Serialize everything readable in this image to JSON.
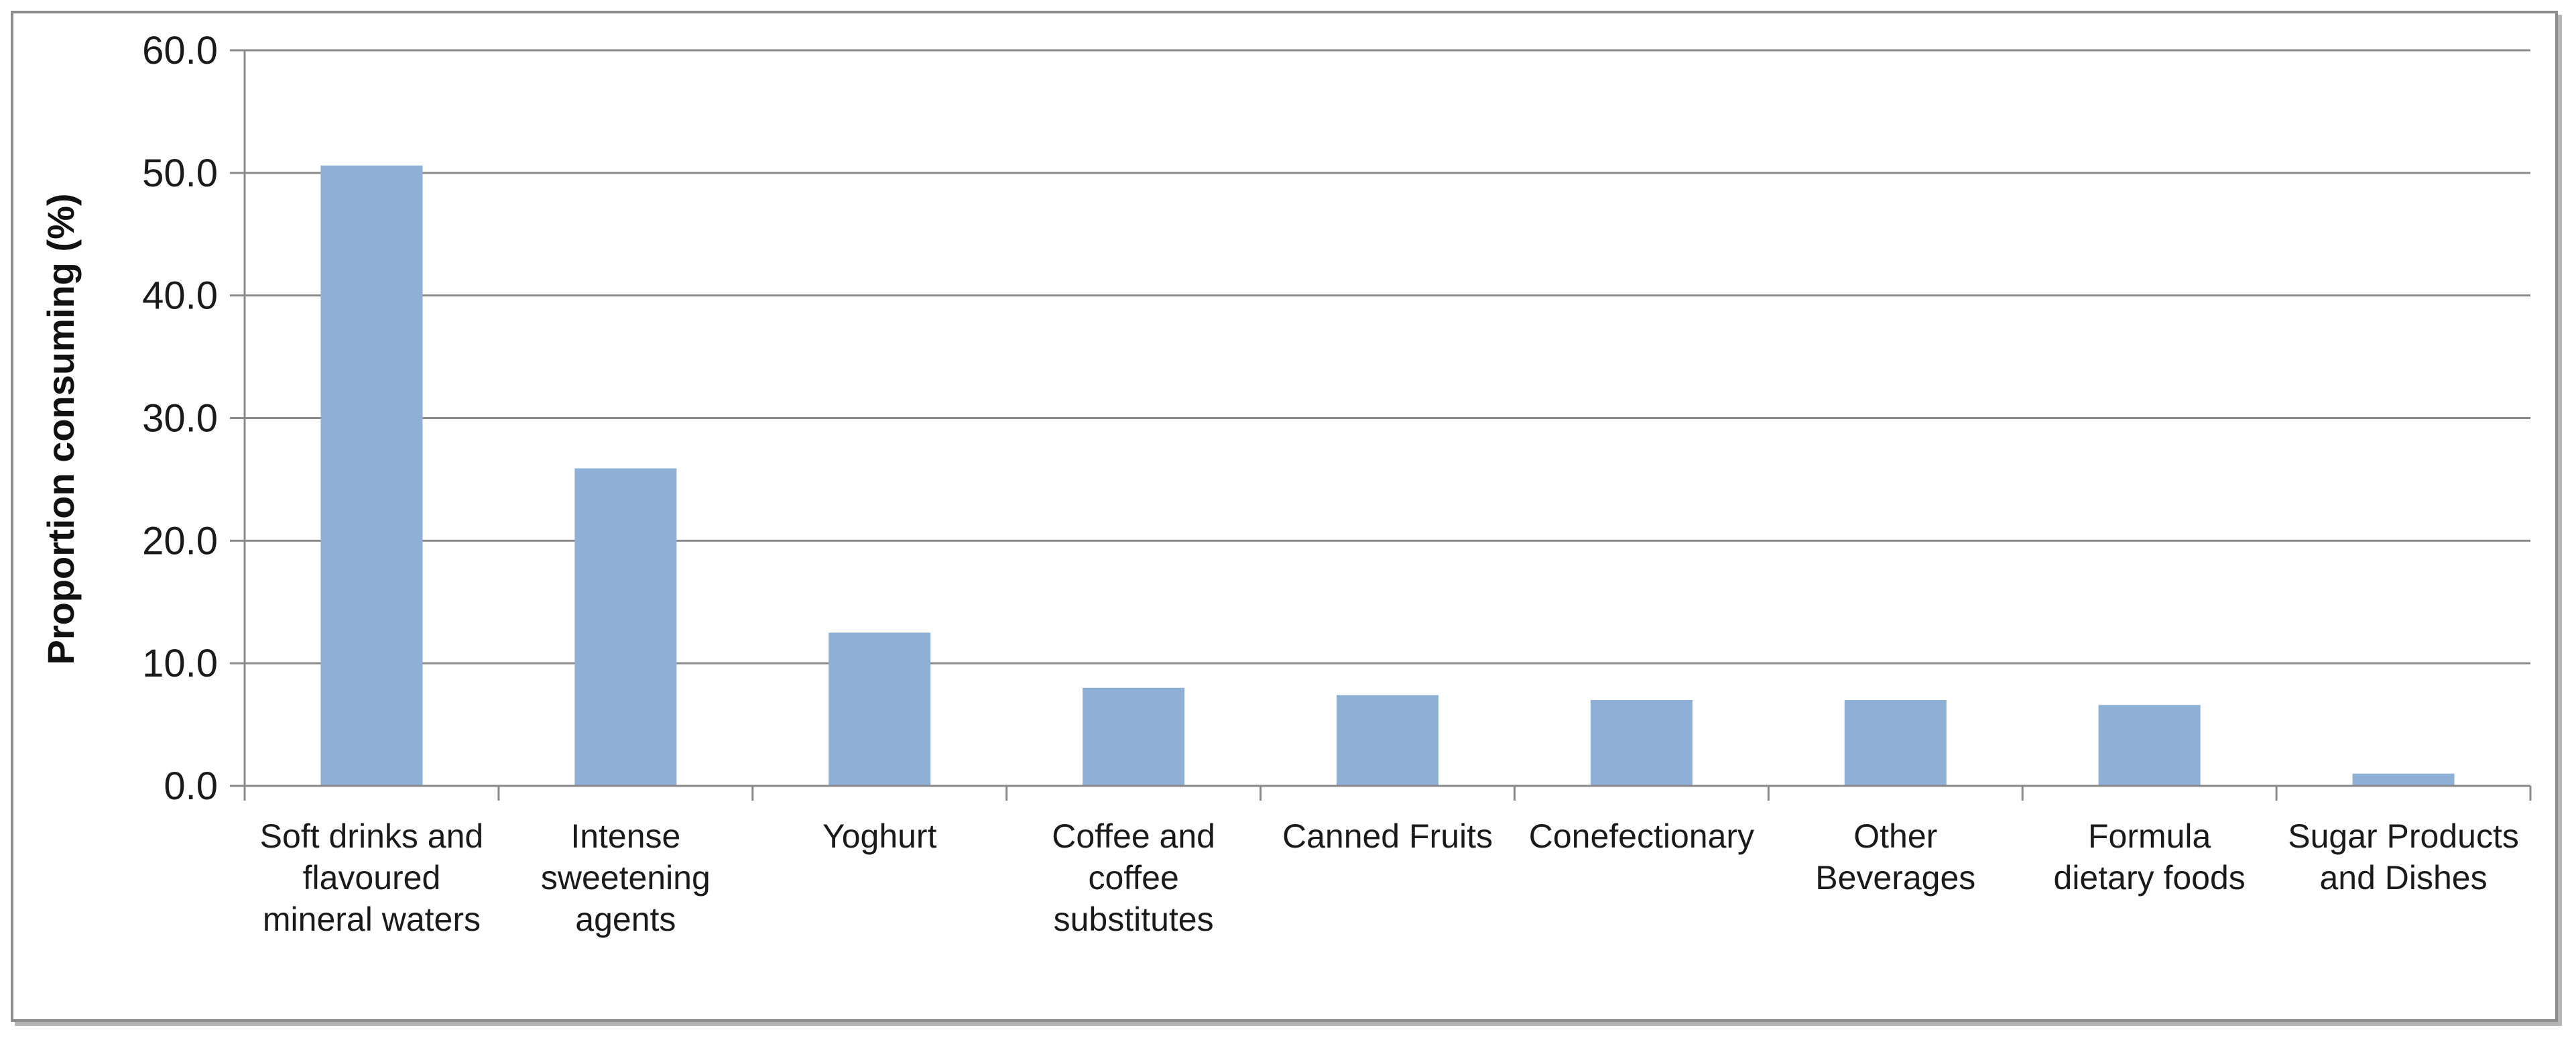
{
  "chart_data": {
    "type": "bar",
    "title": "",
    "xlabel": "",
    "ylabel": "Proportion consuming (%)",
    "ylim": [
      0,
      60
    ],
    "yticks": [
      "0.0",
      "10.0",
      "20.0",
      "30.0",
      "40.0",
      "50.0",
      "60.0"
    ],
    "grid": true,
    "bar_color": "#8eafd6",
    "categories": [
      [
        "Soft drinks and",
        "flavoured",
        "mineral waters"
      ],
      [
        "Intense",
        "sweetening",
        "agents"
      ],
      [
        "Yoghurt"
      ],
      [
        "Coffee and",
        "coffee",
        "substitutes"
      ],
      [
        "Canned Fruits"
      ],
      [
        "Conefectionary"
      ],
      [
        "Other",
        "Beverages"
      ],
      [
        "Formula",
        "dietary foods"
      ],
      [
        "Sugar Products",
        "and Dishes"
      ]
    ],
    "values": [
      50.6,
      25.9,
      12.5,
      8.0,
      7.4,
      7.0,
      7.0,
      6.6,
      1.0
    ]
  }
}
